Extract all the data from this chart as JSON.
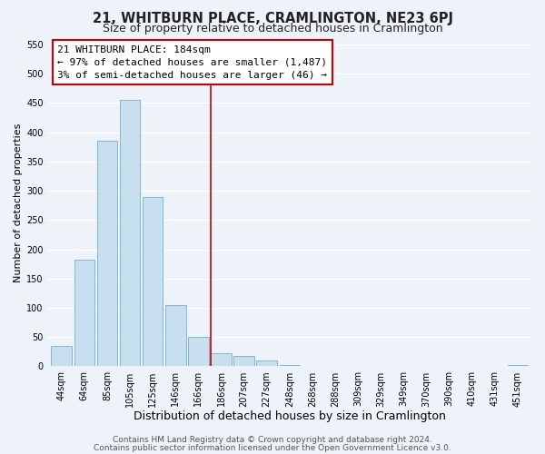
{
  "title": "21, WHITBURN PLACE, CRAMLINGTON, NE23 6PJ",
  "subtitle": "Size of property relative to detached houses in Cramlington",
  "xlabel": "Distribution of detached houses by size in Cramlington",
  "ylabel": "Number of detached properties",
  "bar_labels": [
    "44sqm",
    "64sqm",
    "85sqm",
    "105sqm",
    "125sqm",
    "146sqm",
    "166sqm",
    "186sqm",
    "207sqm",
    "227sqm",
    "248sqm",
    "268sqm",
    "288sqm",
    "309sqm",
    "329sqm",
    "349sqm",
    "370sqm",
    "390sqm",
    "410sqm",
    "431sqm",
    "451sqm"
  ],
  "bar_values": [
    35,
    182,
    385,
    455,
    290,
    105,
    50,
    22,
    18,
    10,
    2,
    1,
    0,
    0,
    0,
    0,
    0,
    0,
    0,
    0,
    2
  ],
  "bar_color": "#c8dff0",
  "bar_edge_color": "#7eb8d4",
  "reference_line_color": "#cc0000",
  "ylim": [
    0,
    560
  ],
  "yticks": [
    0,
    50,
    100,
    150,
    200,
    250,
    300,
    350,
    400,
    450,
    500,
    550
  ],
  "annotation_title": "21 WHITBURN PLACE: 184sqm",
  "annotation_line1": "← 97% of detached houses are smaller (1,487)",
  "annotation_line2": "3% of semi-detached houses are larger (46) →",
  "footer_line1": "Contains HM Land Registry data © Crown copyright and database right 2024.",
  "footer_line2": "Contains public sector information licensed under the Open Government Licence v3.0.",
  "background_color": "#eef2f9",
  "grid_color": "#ffffff",
  "title_fontsize": 10.5,
  "subtitle_fontsize": 9,
  "xlabel_fontsize": 9,
  "ylabel_fontsize": 8,
  "tick_fontsize": 7,
  "annotation_fontsize": 8,
  "footer_fontsize": 6.5
}
